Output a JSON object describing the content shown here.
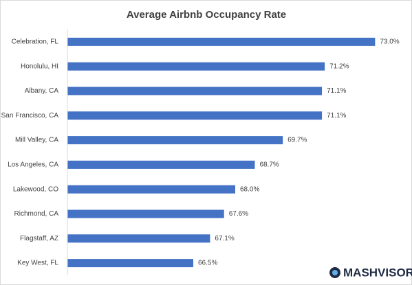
{
  "chart_data": {
    "type": "bar",
    "orientation": "horizontal",
    "title": "Average Airbnb Occupancy Rate",
    "categories": [
      "Celebration, FL",
      "Honolulu, HI",
      "Albany, CA",
      "San Francisco, CA",
      "Mill Valley, CA",
      "Los Angeles, CA",
      "Lakewood, CO",
      "Richmond, CA",
      "Flagstaff, AZ",
      "Key West, FL"
    ],
    "values": [
      73.0,
      71.2,
      71.1,
      71.1,
      69.7,
      68.7,
      68.0,
      67.6,
      67.1,
      66.5
    ],
    "value_labels": [
      "73.0%",
      "71.2%",
      "71.1%",
      "71.1%",
      "69.7%",
      "68.7%",
      "68.0%",
      "67.6%",
      "67.1%",
      "66.5%"
    ],
    "color": "#4472c4",
    "xlim": [
      62,
      74
    ],
    "grid": false
  },
  "logo": "MASHVISOR"
}
